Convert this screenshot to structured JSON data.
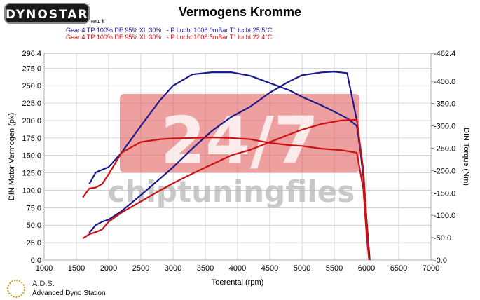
{
  "header": {
    "logo_text": "DYNOSTAR",
    "title": "Vermogens Kromme",
    "tiny_label": "ниш fi",
    "conditions": [
      "Gear:4 TP:100% DE:95% XL:30%   - P Lucht:1006.0mBar T° lucht:25.5°C",
      "Gear:4 TP:100% DE:95% XL:30%   - P Lucht:1006.5mBar T° lucht:22.4°C"
    ]
  },
  "watermark": {
    "big": "24/7",
    "small": "chiptuningfiles"
  },
  "footer": {
    "brand": "A.D.S.",
    "subtitle": "Advanced Dyno Station"
  },
  "colors": {
    "tuned": "#1a1a8c",
    "stock": "#cc1111",
    "watermark": "#e05050",
    "grid": "#c0c0c0"
  },
  "chart_data": {
    "type": "line",
    "title": "Vermogens Kromme",
    "xlabel": "Toerental (rpm)",
    "ylabel_left": "DIN Motor Vermogen (pk)",
    "ylabel_right": "DIN Torque (Nm)",
    "xlim": [
      1000,
      7000
    ],
    "ylim_left": [
      0.0,
      296.4
    ],
    "ylim_right": [
      0.0,
      462.4
    ],
    "x_ticks": [
      1000,
      1500,
      2000,
      2500,
      3000,
      3500,
      4000,
      4500,
      5000,
      5500,
      6000,
      6500,
      7000
    ],
    "y_left_ticks": [
      "0.0",
      "25.0",
      "50.0",
      "75.0",
      "100.0",
      "125.0",
      "150.0",
      "175.0",
      "200.0",
      "225.0",
      "250.0",
      "275.0",
      "296.4"
    ],
    "y_right_ticks": [
      "0.0",
      "50.0",
      "100.0",
      "150.0",
      "200.0",
      "250.0",
      "300.0",
      "350.0",
      "400.0",
      "462.4"
    ],
    "grid": true,
    "series": [
      {
        "name": "",
        "axis": "left",
        "color": "#1a1a8c",
        "x": [
          1700,
          1800,
          1900,
          2000,
          2200,
          2500,
          2800,
          3000,
          3300,
          3600,
          3900,
          4200,
          4500,
          4800,
          5000,
          5300,
          5500,
          5700,
          5850,
          5950,
          6000,
          6050
        ],
        "y": [
          39,
          50,
          55,
          58,
          70,
          93,
          117,
          133,
          160,
          185,
          205,
          220,
          240,
          256,
          265,
          269,
          270,
          268,
          200,
          120,
          60,
          0
        ]
      },
      {
        "name": "",
        "axis": "right",
        "color": "#1a1a8c",
        "x": [
          1700,
          1800,
          1900,
          2000,
          2200,
          2500,
          2800,
          3000,
          3300,
          3600,
          3900,
          4200,
          4500,
          4800,
          5000,
          5300,
          5500,
          5700,
          5850,
          5950,
          6000,
          6050
        ],
        "y": [
          170,
          196,
          202,
          208,
          240,
          300,
          358,
          390,
          415,
          420,
          420,
          412,
          396,
          380,
          365,
          346,
          332,
          317,
          300,
          200,
          90,
          0
        ]
      },
      {
        "name": "",
        "axis": "left",
        "color": "#cc1111",
        "x": [
          1600,
          1700,
          1800,
          1900,
          2000,
          2200,
          2500,
          2800,
          3000,
          3300,
          3600,
          3900,
          4200,
          4500,
          4800,
          5000,
          5300,
          5600,
          5850,
          5950,
          6000,
          6040
        ],
        "y": [
          31,
          37,
          40,
          44,
          55,
          68,
          84,
          100,
          110,
          124,
          137,
          150,
          158,
          169,
          180,
          187,
          195,
          200,
          201,
          130,
          60,
          0
        ]
      },
      {
        "name": "",
        "axis": "right",
        "color": "#cc1111",
        "x": [
          1600,
          1700,
          1800,
          1900,
          2000,
          2200,
          2500,
          2800,
          3000,
          3300,
          3600,
          3900,
          4200,
          4500,
          4800,
          5000,
          5300,
          5600,
          5850,
          5950,
          6000,
          6040
        ],
        "y": [
          140,
          160,
          162,
          170,
          192,
          240,
          264,
          270,
          272,
          273,
          274,
          273,
          270,
          262,
          257,
          255,
          249,
          246,
          240,
          160,
          60,
          0
        ]
      }
    ]
  }
}
